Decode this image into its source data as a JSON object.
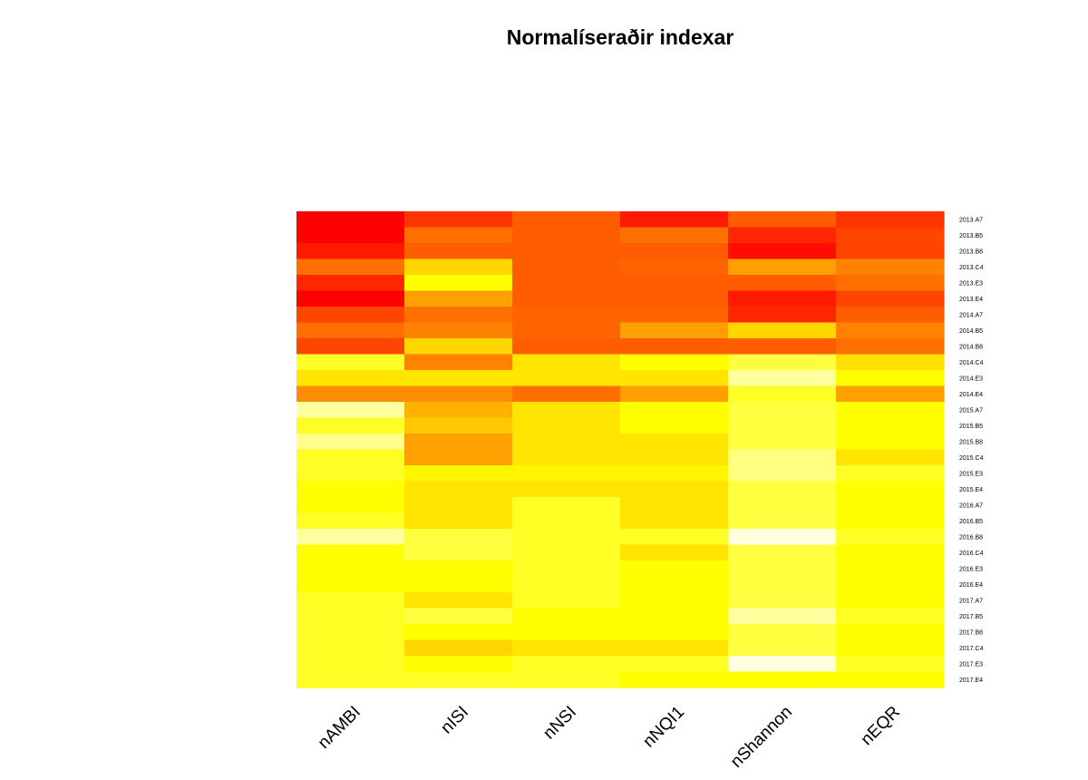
{
  "chart_data": {
    "type": "heatmap",
    "title": "Normalíseraðir indexar",
    "columns": [
      "nAMBI",
      "nISI",
      "nNSI",
      "nNQI1",
      "nShannon",
      "nEQR"
    ],
    "rows": [
      "2013.A7",
      "2013.B5",
      "2013.B8",
      "2013.C4",
      "2013.E3",
      "2013.E4",
      "2014.A7",
      "2014.B5",
      "2014.B8",
      "2014.C4",
      "2014.E3",
      "2014.E4",
      "2015.A7",
      "2015.B5",
      "2015.B8",
      "2015.C4",
      "2015.E3",
      "2015.E4",
      "2016.A7",
      "2016.B5",
      "2016.B8",
      "2016.C4",
      "2016.E3",
      "2016.E4",
      "2017.A7",
      "2017.B5",
      "2017.B8",
      "2017.C4",
      "2017.E3",
      "2017.E4"
    ],
    "colors": [
      [
        "#FF0000",
        "#FF3300",
        "#FF5D00",
        "#FF1A00",
        "#FF5D00",
        "#FF3300"
      ],
      [
        "#FF0000",
        "#FF7000",
        "#FF5D00",
        "#FF7000",
        "#FF2600",
        "#FF4500"
      ],
      [
        "#FF1A00",
        "#FF5D00",
        "#FF5D00",
        "#FF5D00",
        "#FF0D00",
        "#FF4500"
      ],
      [
        "#FF7000",
        "#FFD600",
        "#FF5D00",
        "#FF6400",
        "#FFA000",
        "#FF8200"
      ],
      [
        "#FF2600",
        "#FFFF00",
        "#FF5D00",
        "#FF5D00",
        "#FF5D00",
        "#FF7000"
      ],
      [
        "#FF0000",
        "#FFA000",
        "#FF5D00",
        "#FF5D00",
        "#FF1A00",
        "#FF4500"
      ],
      [
        "#FF4500",
        "#FF7000",
        "#FF6400",
        "#FF6400",
        "#FF2600",
        "#FF5D00"
      ],
      [
        "#FF7000",
        "#FF8200",
        "#FF6400",
        "#FFA000",
        "#FFD600",
        "#FF8200"
      ],
      [
        "#FF4500",
        "#FFD600",
        "#FF5D00",
        "#FF5D00",
        "#FF5D00",
        "#FF7000"
      ],
      [
        "#FFFF26",
        "#FF8200",
        "#FFE500",
        "#FFFF00",
        "#FFFF40",
        "#FFE000"
      ],
      [
        "#FFE500",
        "#FFE500",
        "#FFE500",
        "#FFE500",
        "#FFFFA0",
        "#FFFF00"
      ],
      [
        "#FF8C00",
        "#FF8C00",
        "#FF6E00",
        "#FFA000",
        "#FFFF26",
        "#FFA000"
      ],
      [
        "#FFFFA0",
        "#FFB200",
        "#FFE500",
        "#FFFF00",
        "#FFFF40",
        "#FFFF00"
      ],
      [
        "#FFFF26",
        "#FFC800",
        "#FFE500",
        "#FFFF00",
        "#FFFF40",
        "#FFFF00"
      ],
      [
        "#FFFF8C",
        "#FFA000",
        "#FFE500",
        "#FFE500",
        "#FFFF40",
        "#FFFF00"
      ],
      [
        "#FFFF26",
        "#FFA000",
        "#FFE500",
        "#FFE500",
        "#FFFF80",
        "#FFE500"
      ],
      [
        "#FFFF26",
        "#FFF500",
        "#FFF500",
        "#FFF500",
        "#FFFF80",
        "#FFFF26"
      ],
      [
        "#FFFF00",
        "#FFE500",
        "#FFE500",
        "#FFE500",
        "#FFFF40",
        "#FFFF00"
      ],
      [
        "#FFFF00",
        "#FFE500",
        "#FFFF26",
        "#FFE500",
        "#FFFF40",
        "#FFFF00"
      ],
      [
        "#FFFF26",
        "#FFE500",
        "#FFFF26",
        "#FFE500",
        "#FFFF40",
        "#FFFF00"
      ],
      [
        "#FFFFA0",
        "#FFFF40",
        "#FFFF26",
        "#FFFF26",
        "#FFFFE0",
        "#FFFF26"
      ],
      [
        "#FFFF00",
        "#FFFF40",
        "#FFFF26",
        "#FFE500",
        "#FFFF40",
        "#FFFF00"
      ],
      [
        "#FFFF00",
        "#FFFF00",
        "#FFFF26",
        "#FFFF00",
        "#FFFF40",
        "#FFFF00"
      ],
      [
        "#FFFF00",
        "#FFFF00",
        "#FFFF26",
        "#FFFF00",
        "#FFFF40",
        "#FFFF00"
      ],
      [
        "#FFFF26",
        "#FFE500",
        "#FFFF26",
        "#FFFF00",
        "#FFFF40",
        "#FFFF00"
      ],
      [
        "#FFFF26",
        "#FFFF40",
        "#FFFF00",
        "#FFFF00",
        "#FFFFA0",
        "#FFFF26"
      ],
      [
        "#FFFF26",
        "#FFFF00",
        "#FFFF00",
        "#FFFF00",
        "#FFFF40",
        "#FFFF00"
      ],
      [
        "#FFFF26",
        "#FFD600",
        "#FFE500",
        "#FFE500",
        "#FFFF40",
        "#FFFF00"
      ],
      [
        "#FFFF26",
        "#FFFF00",
        "#FFFF26",
        "#FFFF26",
        "#FFFFE0",
        "#FFFF26"
      ],
      [
        "#FFFF26",
        "#FFFF26",
        "#FFFF26",
        "#FFFF00",
        "#FFFF00",
        "#FFFF00"
      ]
    ],
    "grid": false,
    "legend": "none"
  }
}
